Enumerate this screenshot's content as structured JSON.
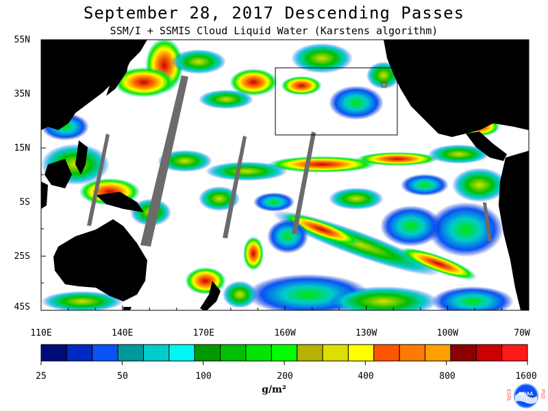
{
  "header": {
    "title": "September 28, 2017  Descending Passes",
    "subtitle": "SSM/I + SSMIS Cloud Liquid Water (Karstens algorithm)"
  },
  "map": {
    "lat_labels": [
      "55N",
      "35N",
      "15N",
      "5S",
      "25S",
      "45S"
    ],
    "lon_labels": [
      "110E",
      "140E",
      "170E",
      "160W",
      "130W",
      "100W",
      "70W"
    ]
  },
  "colorbar": {
    "labels": [
      "25",
      "50",
      "100",
      "200",
      "400",
      "800",
      "1600"
    ],
    "unit": "g/m²",
    "colors": [
      "#000b7a",
      "#0029c4",
      "#0a52f5",
      "#009999",
      "#00cccc",
      "#00f5f5",
      "#009900",
      "#00bf00",
      "#00e600",
      "#00ff00",
      "#b3b300",
      "#dede00",
      "#ffff00",
      "#ff5500",
      "#ff7a00",
      "#ff9f00",
      "#8b0000",
      "#cc0000",
      "#ff1a1a"
    ]
  },
  "colors": {
    "land": "#000000",
    "no_data_swath": "#6b6b6b",
    "ocean_clear": "#ffffff"
  },
  "logo": {
    "label": "NOAA",
    "side_left": "ESRL",
    "side_right": "PSD"
  }
}
